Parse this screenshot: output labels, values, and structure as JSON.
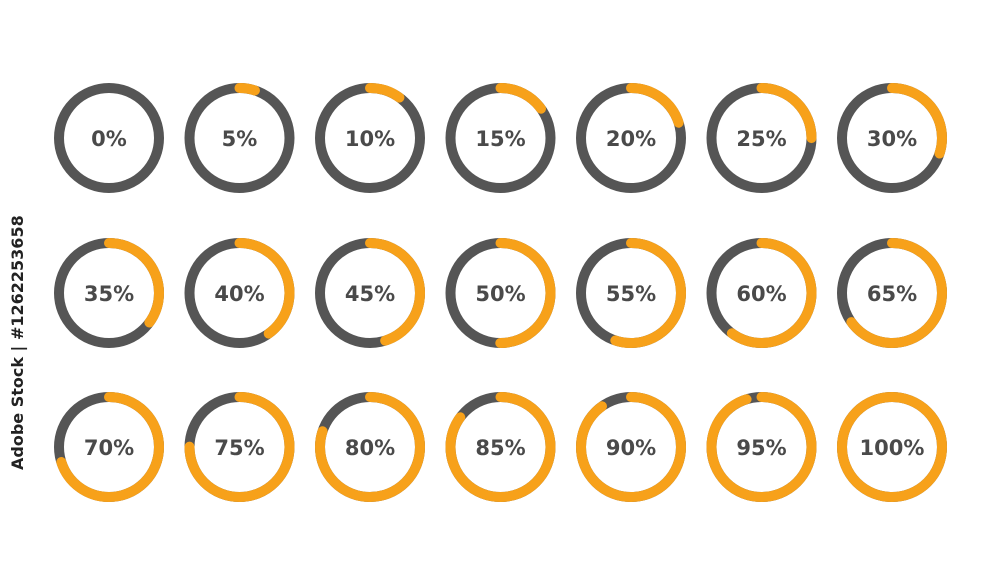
{
  "style": {
    "track_color": "#555555",
    "progress_color": "#f7a11a",
    "label_color": "#4a4a4a"
  },
  "watermark": "Adobe Stock | #1262253658",
  "rings": [
    {
      "label": "0%",
      "value": 0
    },
    {
      "label": "5%",
      "value": 5
    },
    {
      "label": "10%",
      "value": 10
    },
    {
      "label": "15%",
      "value": 15
    },
    {
      "label": "20%",
      "value": 20
    },
    {
      "label": "25%",
      "value": 25
    },
    {
      "label": "30%",
      "value": 30
    },
    {
      "label": "35%",
      "value": 35
    },
    {
      "label": "40%",
      "value": 40
    },
    {
      "label": "45%",
      "value": 45
    },
    {
      "label": "50%",
      "value": 50
    },
    {
      "label": "55%",
      "value": 55
    },
    {
      "label": "60%",
      "value": 60
    },
    {
      "label": "65%",
      "value": 65
    },
    {
      "label": "70%",
      "value": 70
    },
    {
      "label": "75%",
      "value": 75
    },
    {
      "label": "80%",
      "value": 80
    },
    {
      "label": "85%",
      "value": 85
    },
    {
      "label": "90%",
      "value": 90
    },
    {
      "label": "95%",
      "value": 95
    },
    {
      "label": "100%",
      "value": 100
    }
  ]
}
